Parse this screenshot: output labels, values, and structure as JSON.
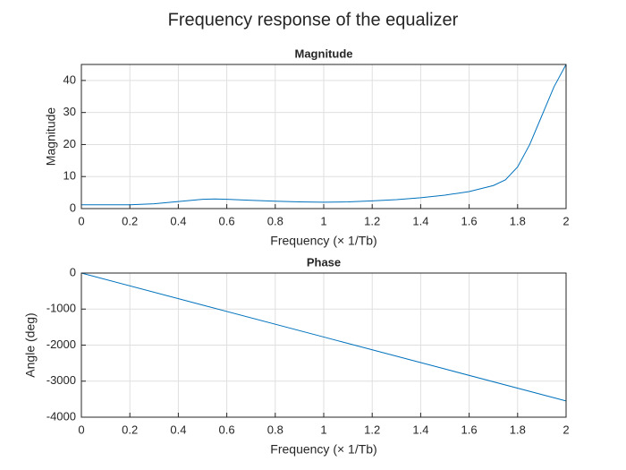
{
  "title": "Frequency response of the equalizer",
  "chart_data": [
    {
      "type": "line",
      "title": "Magnitude",
      "xlabel": "Frequency (× 1/Tb)",
      "ylabel": "Magnitude",
      "x": [
        0,
        0.1,
        0.2,
        0.3,
        0.4,
        0.5,
        0.55,
        0.6,
        0.7,
        0.8,
        0.9,
        1.0,
        1.1,
        1.2,
        1.3,
        1.4,
        1.5,
        1.6,
        1.7,
        1.75,
        1.8,
        1.85,
        1.9,
        1.95,
        2.0
      ],
      "series": [
        {
          "color": "#0072bd",
          "values": [
            1.2,
            1.2,
            1.2,
            1.5,
            2.2,
            2.9,
            3.0,
            2.9,
            2.6,
            2.3,
            2.1,
            2.0,
            2.1,
            2.4,
            2.8,
            3.4,
            4.2,
            5.3,
            7.2,
            9,
            13,
            20,
            29,
            38,
            45
          ]
        }
      ],
      "xlim": [
        0,
        2
      ],
      "xticks": [
        0,
        0.2,
        0.4,
        0.6,
        0.8,
        1,
        1.2,
        1.4,
        1.6,
        1.8,
        2
      ],
      "ylim": [
        0,
        45
      ],
      "yticks": [
        0,
        10,
        20,
        30,
        40
      ],
      "grid": true
    },
    {
      "type": "line",
      "title": "Phase",
      "xlabel": "Frequency (× 1/Tb)",
      "ylabel": "Angle (deg)",
      "x": [
        0,
        0.5,
        1,
        1.5,
        2
      ],
      "series": [
        {
          "color": "#0072bd",
          "values": [
            0,
            -887.5,
            -1775,
            -2662.5,
            -3550
          ]
        }
      ],
      "xlim": [
        0,
        2
      ],
      "xticks": [
        0,
        0.2,
        0.4,
        0.6,
        0.8,
        1,
        1.2,
        1.4,
        1.6,
        1.8,
        2
      ],
      "ylim": [
        -4000,
        0
      ],
      "yticks": [
        -4000,
        -3000,
        -2000,
        -1000,
        0
      ],
      "grid": true
    }
  ]
}
